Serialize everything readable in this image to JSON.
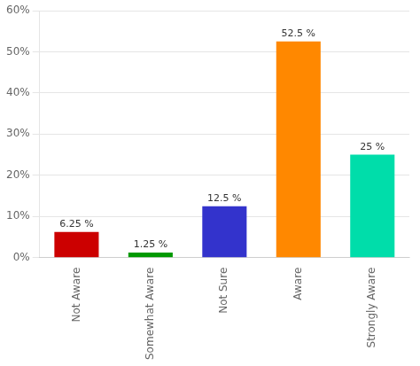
{
  "chart_data": {
    "type": "bar",
    "categories": [
      "Not Aware",
      "Somewhat Aware",
      "Not Sure",
      "Aware",
      "Strongly Aware"
    ],
    "values": [
      6.25,
      1.25,
      12.5,
      52.5,
      25.0
    ],
    "value_labels": [
      "6.25 %",
      "1.25 %",
      "12.5 %",
      "52.5 %",
      "25 %"
    ],
    "data_labels": true,
    "colors": [
      "#cc0000",
      "#009900",
      "#3333cc",
      "#ff8800",
      "#00ddaa"
    ],
    "ylim": [
      0,
      60
    ],
    "yticks": [
      {
        "value": 0,
        "label": "0%"
      },
      {
        "value": 10,
        "label": "10%"
      },
      {
        "value": 20,
        "label": "20%"
      },
      {
        "value": 30,
        "label": "30%"
      },
      {
        "value": 40,
        "label": "40%"
      },
      {
        "value": 50,
        "label": "50%"
      },
      {
        "value": 60,
        "label": "60%"
      }
    ],
    "grid": true
  }
}
